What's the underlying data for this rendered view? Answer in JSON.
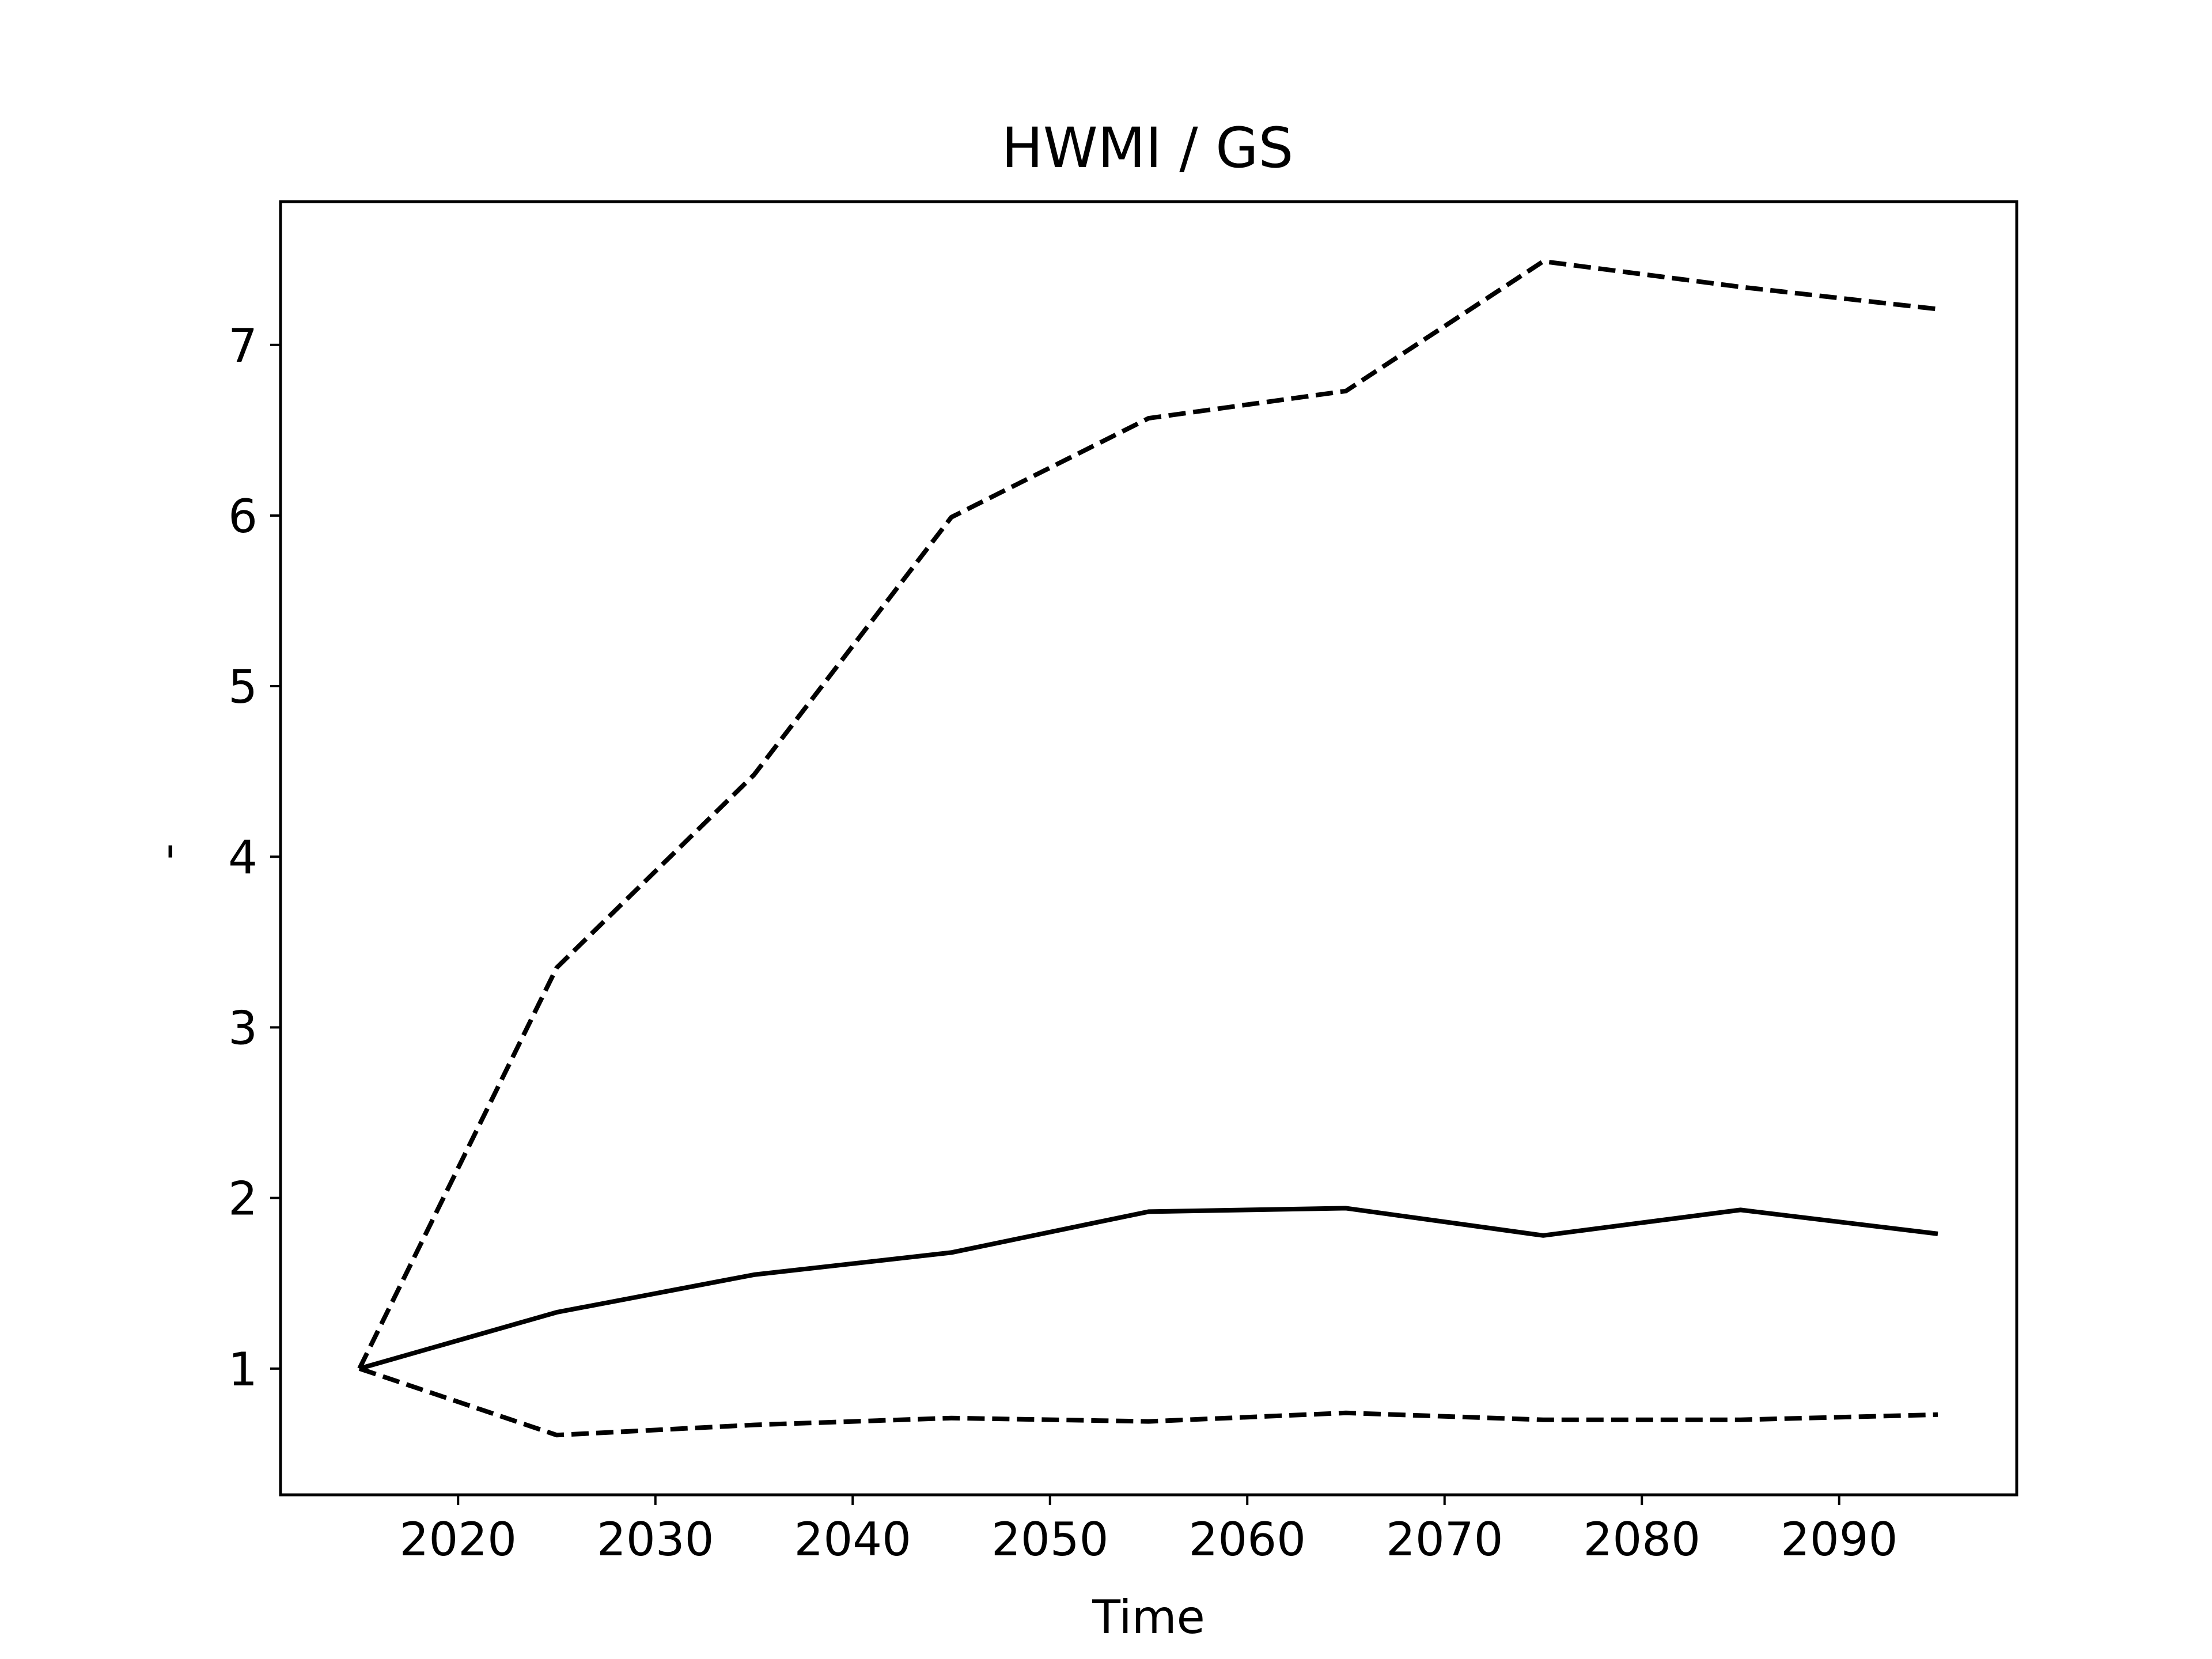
{
  "chart_data": {
    "type": "line",
    "title": "HWMI / GS",
    "xlabel": "Time",
    "ylabel": "-",
    "x": [
      2015,
      2025,
      2035,
      2045,
      2055,
      2065,
      2075,
      2085,
      2095
    ],
    "series": [
      {
        "style": "solid",
        "values": [
          1.0,
          1.33,
          1.55,
          1.68,
          1.92,
          1.94,
          1.78,
          1.93,
          1.79
        ]
      },
      {
        "style": "dashed",
        "values": [
          1.0,
          3.35,
          4.48,
          5.99,
          6.57,
          6.73,
          7.49,
          7.34,
          7.21
        ]
      },
      {
        "style": "dashed",
        "values": [
          1.0,
          0.61,
          0.67,
          0.71,
          0.69,
          0.74,
          0.7,
          0.7,
          0.73
        ]
      }
    ],
    "xlim": [
      2011,
      2099
    ],
    "ylim": [
      0.26,
      7.84
    ],
    "xticks": [
      2020,
      2030,
      2040,
      2050,
      2060,
      2070,
      2080,
      2090
    ],
    "yticks": [
      1,
      2,
      3,
      4,
      5,
      6,
      7
    ],
    "grid": false,
    "legend": "none",
    "colors": {
      "line": "#000000",
      "axes": "#000000",
      "background": "#ffffff"
    }
  }
}
